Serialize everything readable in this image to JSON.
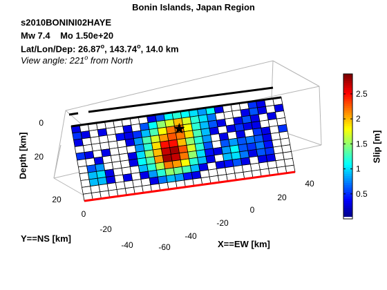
{
  "chart_data": {
    "type": "heatmap",
    "title": "Bonin Islands, Japan Region",
    "event_id": "s2010BONINI02HAYE",
    "magnitude": "Mw 7.4",
    "moment": "Mo 1.50e+20",
    "location_label": "Lat/Lon/Dep: 26.87",
    "location_values": [
      "26.87",
      "143.74",
      "14.0"
    ],
    "location_units": "km",
    "view_angle_label": "View angle: 221",
    "view_angle_suffix": "from North",
    "degree_symbol": "o",
    "xlabel": "X==EW [km]",
    "ylabel": "Y==NS [km]",
    "zlabel": "Depth [km]",
    "x_ticks": [
      "-60",
      "-40",
      "-20",
      "0",
      "20",
      "40"
    ],
    "y_ticks": [
      "-40",
      "-20",
      "0",
      "20"
    ],
    "z_ticks": [
      "0",
      "20"
    ],
    "colorbar": {
      "label": "Slip [m]",
      "ticks": [
        "0.5",
        "1",
        "1.5",
        "2",
        "2.5"
      ],
      "range": [
        0,
        2.9
      ],
      "colormap": "jet"
    },
    "grid": {
      "rows": 11,
      "cols": 25
    },
    "slip_m": [
      [
        0.3,
        0,
        0,
        0,
        0,
        0,
        0,
        0,
        0,
        0.3,
        0.6,
        1.1,
        1.2,
        1.1,
        1.0,
        0.8,
        1.1,
        0.3,
        0,
        0,
        0,
        0.5,
        0.3,
        0,
        0
      ],
      [
        0.5,
        0.3,
        0,
        0.3,
        0,
        0,
        0.3,
        0,
        0.6,
        1.1,
        1.5,
        1.7,
        2.0,
        1.7,
        1.2,
        1.0,
        0.7,
        0,
        0,
        0,
        0.3,
        0.6,
        0.3,
        0,
        0.3
      ],
      [
        0.3,
        0,
        0,
        0,
        0,
        0.4,
        0.3,
        0.5,
        0.9,
        1.3,
        1.8,
        2.2,
        2.2,
        1.8,
        1.2,
        0.9,
        0.6,
        0.3,
        0,
        0.3,
        0.6,
        0.3,
        0,
        0.3,
        0
      ],
      [
        0,
        0,
        0,
        0,
        0,
        0,
        0.3,
        0.8,
        1.3,
        1.7,
        2.1,
        2.3,
        2.2,
        1.9,
        1.3,
        0.9,
        0.3,
        0,
        0.3,
        0.5,
        0.3,
        0.3,
        0,
        0,
        0
      ],
      [
        0.5,
        0.3,
        0,
        0.3,
        0,
        0,
        0,
        0.8,
        1.2,
        1.9,
        2.5,
        2.5,
        2.0,
        1.5,
        1.2,
        0.8,
        0,
        0.3,
        0,
        0.3,
        0,
        0.5,
        0.3,
        0,
        0.5
      ],
      [
        0,
        0,
        0.3,
        0,
        0,
        0,
        0.3,
        1.0,
        1.5,
        2.0,
        2.7,
        2.8,
        2.3,
        1.7,
        1.2,
        0.6,
        0,
        0.6,
        0.8,
        0.6,
        0.7,
        0.6,
        0.3,
        0,
        0
      ],
      [
        0,
        0.6,
        0.8,
        0,
        0,
        0,
        0.3,
        1.1,
        1.3,
        2.1,
        2.8,
        2.7,
        2.2,
        1.5,
        1.0,
        0.4,
        0.3,
        0.8,
        1.1,
        0.6,
        0.5,
        0.7,
        0.4,
        0,
        0
      ],
      [
        0,
        0.9,
        1.0,
        0.3,
        0,
        0,
        0,
        0.9,
        1.2,
        1.6,
        2.2,
        2.1,
        1.8,
        1.2,
        0.9,
        0.3,
        0,
        0.9,
        1.0,
        0.7,
        0.3,
        0.6,
        0.5,
        0,
        0
      ],
      [
        0,
        0.9,
        0.9,
        0.3,
        0,
        0.3,
        0,
        0.3,
        0.8,
        1.2,
        1.5,
        1.4,
        1.3,
        0.9,
        0.3,
        0,
        0.3,
        0.4,
        0.6,
        0.3,
        0,
        0.3,
        0.3,
        0,
        0
      ],
      [
        0,
        0,
        0,
        0,
        0,
        0,
        0,
        0,
        0.3,
        0.7,
        0.9,
        0.8,
        0.4,
        0.3,
        0,
        0,
        0,
        0,
        0,
        0,
        0,
        0,
        0,
        0,
        0
      ],
      [
        0,
        0,
        0,
        0,
        0,
        0,
        0,
        0,
        0,
        0,
        0,
        0,
        0,
        0,
        0,
        0,
        0,
        0,
        0,
        0,
        0,
        0,
        0,
        0,
        0
      ]
    ],
    "hypocenter": {
      "row": 2,
      "col": 12
    }
  }
}
